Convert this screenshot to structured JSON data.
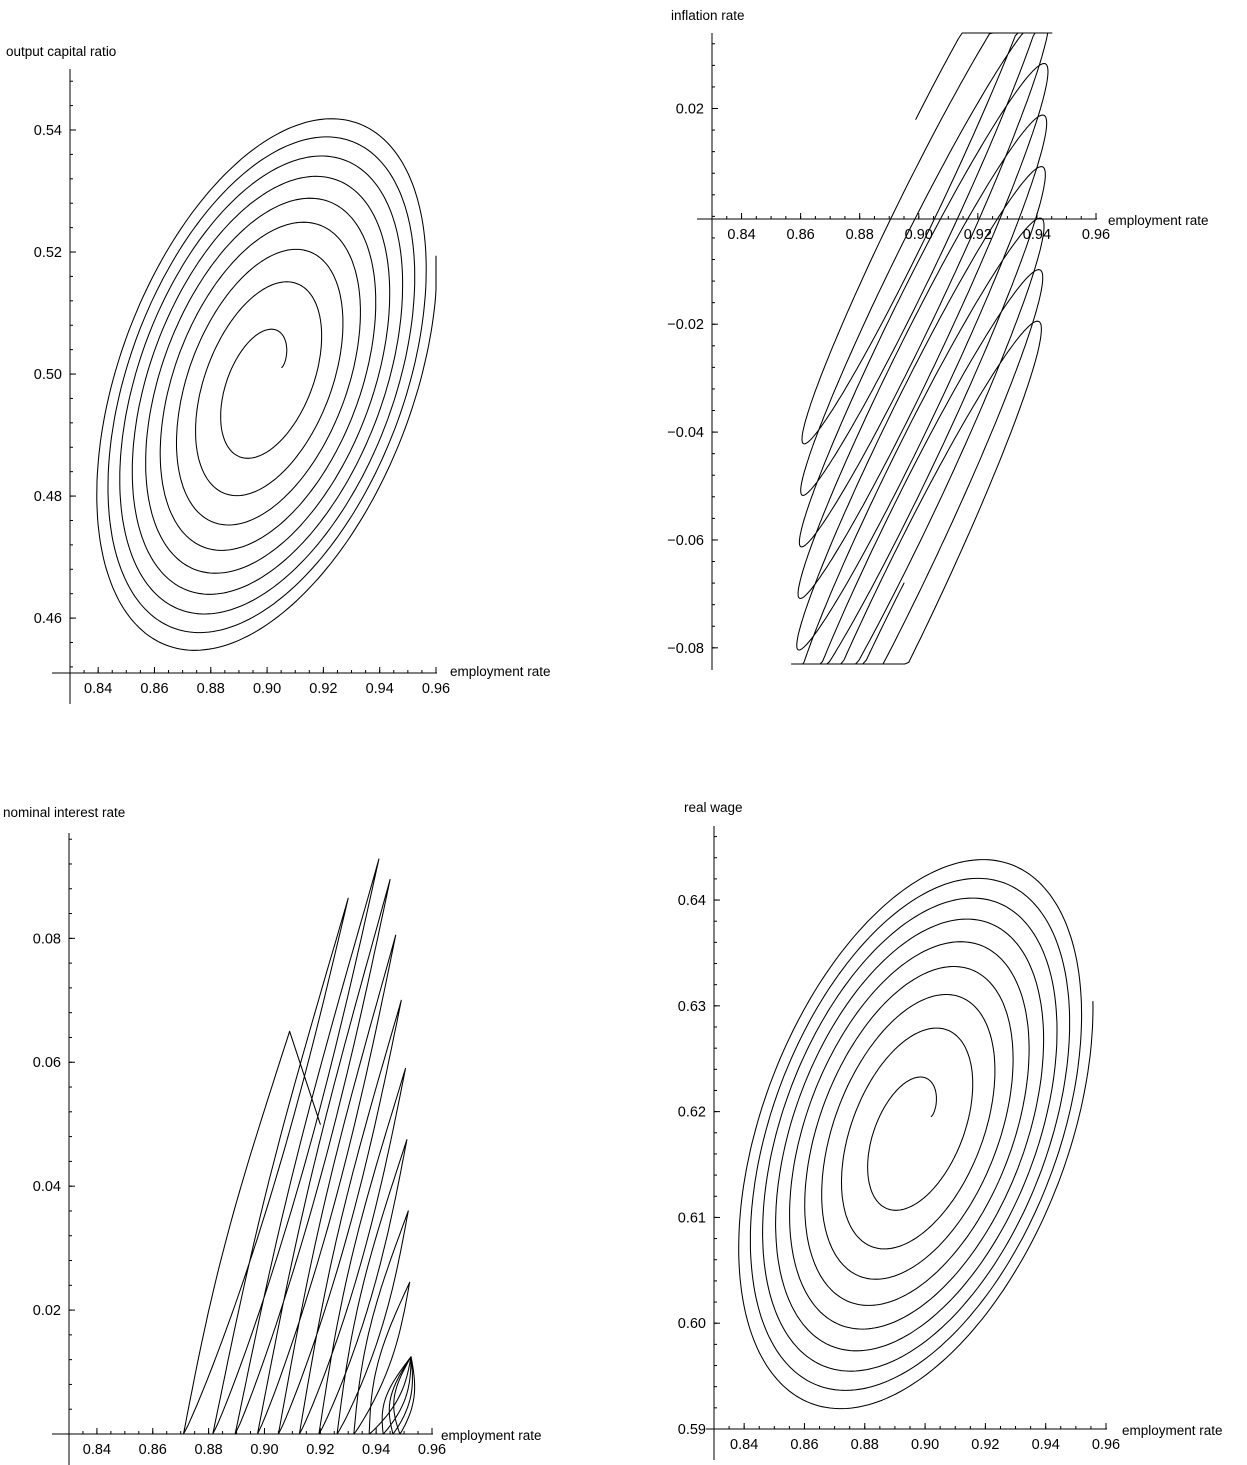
{
  "chart_data": [
    {
      "type": "line",
      "xlabel": "employment rate",
      "ylabel": "output capital ratio",
      "xlim": [
        0.83,
        0.96
      ],
      "ylim": [
        0.451,
        0.55
      ],
      "x_ticks": [
        0.84,
        0.86,
        0.88,
        0.9,
        0.92,
        0.94,
        0.96
      ],
      "x_tick_labels": [
        "0.84",
        "0.86",
        "0.88",
        "0.90",
        "0.92",
        "0.94",
        "0.96"
      ],
      "y_ticks": [
        0.46,
        0.48,
        0.5,
        0.52,
        0.54
      ],
      "y_tick_labels": [
        "0.46",
        "0.48",
        "0.50",
        "0.52",
        "0.54"
      ],
      "grid": false,
      "trajectory": {
        "kind": "outward_spiral",
        "center": [
          0.899,
          0.499
        ],
        "start": [
          0.919,
          0.5043
        ],
        "loops": 9,
        "end": [
          0.875,
          0.452
        ],
        "outer_x_range": [
          0.831,
          0.955
        ],
        "outer_y_range": [
          0.451,
          0.5445
        ],
        "tilt": "up-right"
      }
    },
    {
      "type": "line",
      "xlabel": "employment rate",
      "ylabel": "inflation rate",
      "xlim": [
        0.83,
        0.96
      ],
      "ylim": [
        -0.083,
        0.034
      ],
      "x_ticks": [
        0.84,
        0.86,
        0.88,
        0.9,
        0.92,
        0.94,
        0.96
      ],
      "x_tick_labels": [
        "0.84",
        "0.86",
        "0.88",
        "0.90",
        "0.92",
        "0.94",
        "0.96"
      ],
      "y_ticks": [
        -0.08,
        -0.06,
        -0.04,
        -0.02,
        0.02
      ],
      "y_tick_labels": [
        "−0.08",
        "−0.06",
        "−0.04",
        "−0.02",
        "0.02"
      ],
      "grid": false,
      "trajectory": {
        "kind": "diagonal_loops",
        "start": [
          0.92,
          0.0275
        ],
        "loops": 9,
        "end": [
          0.875,
          -0.0665
        ],
        "x_range": [
          0.83,
          0.952
        ],
        "y_range": [
          -0.078,
          0.029
        ]
      }
    },
    {
      "type": "line",
      "xlabel": "employment rate",
      "ylabel": "nominal interest rate",
      "xlim": [
        0.83,
        0.96
      ],
      "ylim": [
        0.0,
        0.097
      ],
      "x_ticks": [
        0.84,
        0.86,
        0.88,
        0.9,
        0.92,
        0.94,
        0.96
      ],
      "x_tick_labels": [
        "0.84",
        "0.86",
        "0.88",
        "0.90",
        "0.92",
        "0.94",
        "0.96"
      ],
      "y_ticks": [
        0.02,
        0.04,
        0.06,
        0.08
      ],
      "y_tick_labels": [
        "0.02",
        "0.04",
        "0.06",
        "0.08"
      ],
      "grid": false,
      "trajectory": {
        "kind": "spikes_with_zero_floor",
        "start": [
          0.92,
          0.05
        ],
        "first_peak": [
          0.909,
          0.065
        ],
        "peaks": [
          [
            0.909,
            0.065
          ],
          [
            0.93,
            0.0865
          ],
          [
            0.941,
            0.0928
          ],
          [
            0.945,
            0.0895
          ],
          [
            0.947,
            0.0805
          ],
          [
            0.949,
            0.07
          ],
          [
            0.9505,
            0.059
          ],
          [
            0.951,
            0.0475
          ],
          [
            0.9515,
            0.036
          ],
          [
            0.952,
            0.0245
          ],
          [
            0.9525,
            0.0125
          ]
        ],
        "zero_crossings": [
          0.871,
          0.8815,
          0.8895,
          0.8975,
          0.905,
          0.9125,
          0.9195,
          0.926,
          0.932,
          0.9375,
          0.9425,
          0.946,
          0.9485
        ]
      }
    },
    {
      "type": "line",
      "xlabel": "employment rate",
      "ylabel": "real wage",
      "xlim": [
        0.83,
        0.96
      ],
      "ylim": [
        0.59,
        0.647
      ],
      "x_ticks": [
        0.84,
        0.86,
        0.88,
        0.9,
        0.92,
        0.94,
        0.96
      ],
      "x_tick_labels": [
        "0.84",
        "0.86",
        "0.88",
        "0.90",
        "0.92",
        "0.94",
        "0.96"
      ],
      "y_ticks": [
        0.59,
        0.6,
        0.61,
        0.62,
        0.63,
        0.64
      ],
      "y_tick_labels": [
        "0.59",
        "0.60",
        "0.61",
        "0.62",
        "0.63",
        "0.64"
      ],
      "grid": false,
      "trajectory": {
        "kind": "outward_spiral",
        "center": [
          0.896,
          0.6183
        ],
        "start": [
          0.92,
          0.625
        ],
        "loops": 9,
        "end": [
          0.874,
          0.6385
        ],
        "outer_x_range": [
          0.831,
          0.9515
        ],
        "outer_y_range": [
          0.5905,
          0.6462
        ],
        "tilt": "up-right"
      }
    }
  ]
}
